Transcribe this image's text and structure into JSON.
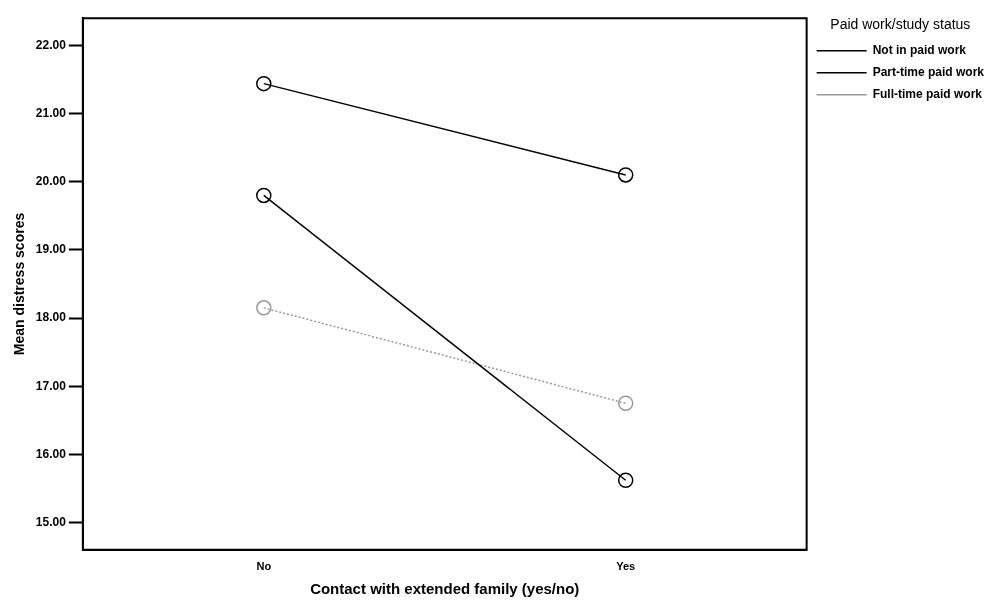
{
  "chart_data": {
    "type": "line",
    "xlabel": "Contact with extended family (yes/no)",
    "ylabel": "Mean distress scores",
    "legend_title": "Paid work/study status",
    "categories": [
      "No",
      "Yes"
    ],
    "series": [
      {
        "name": "Not in paid work",
        "color": "#000000",
        "values": [
          21.44,
          20.1
        ]
      },
      {
        "name": "Part-time paid work",
        "color": "#000000",
        "values": [
          19.8,
          15.62
        ]
      },
      {
        "name": "Full-time paid work",
        "color": "#999999",
        "values": [
          18.15,
          16.75
        ],
        "line_style": "dotted"
      }
    ],
    "ylim": [
      14.6,
      22.4
    ],
    "yticks": [
      {
        "value": 15,
        "label": "15.00"
      },
      {
        "value": 16,
        "label": "16.00"
      },
      {
        "value": 17,
        "label": "17.00"
      },
      {
        "value": 18,
        "label": "18.00"
      },
      {
        "value": 19,
        "label": "19.00"
      },
      {
        "value": 20,
        "label": "20.00"
      },
      {
        "value": 21,
        "label": "21.00"
      },
      {
        "value": 22,
        "label": "22.00"
      }
    ],
    "grid": false,
    "legend": "right",
    "marker": "circle",
    "line_style": "solid"
  }
}
